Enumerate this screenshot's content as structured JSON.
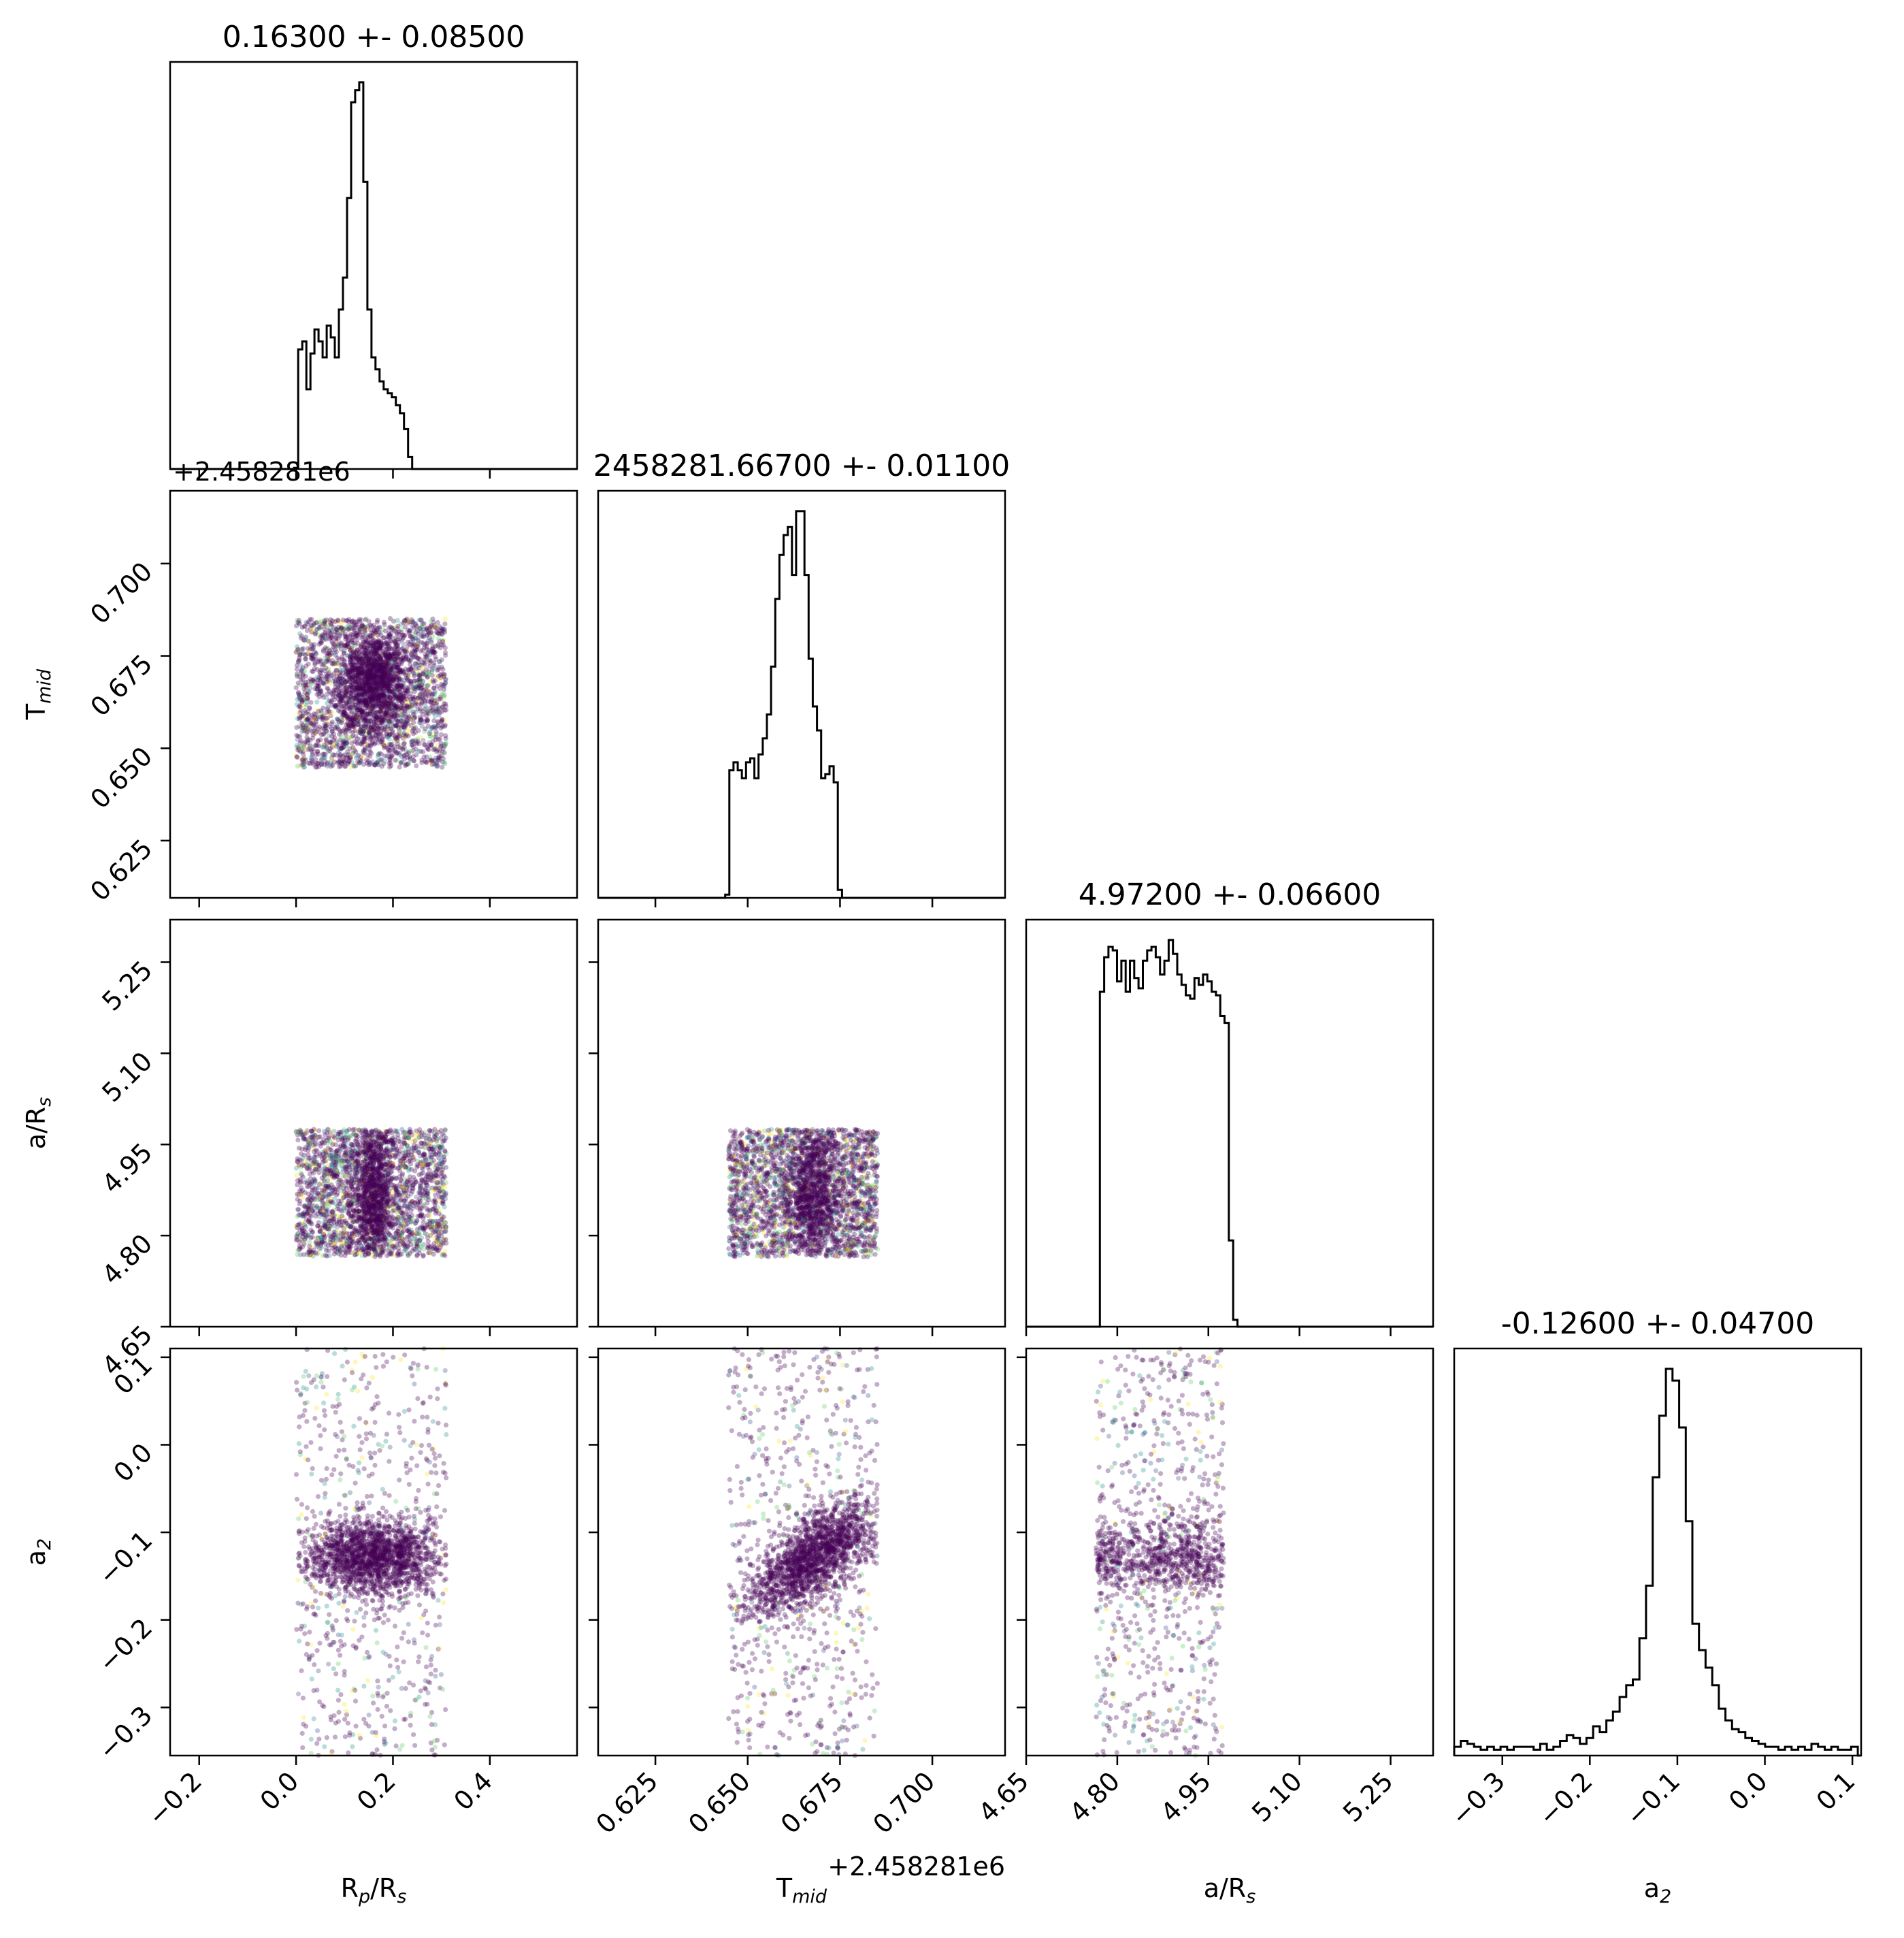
{
  "chart_data": {
    "type": "corner",
    "parameters": [
      {
        "key": "rp",
        "label_main": "R",
        "label_sub": "p",
        "label_tail": "/R",
        "label_tail_sub": "s",
        "range": [
          -0.26,
          0.58
        ],
        "ticks": [
          -0.2,
          0.0,
          0.2,
          0.4
        ],
        "tick_labels": [
          "−0.2",
          "0.0",
          "0.2",
          "0.4"
        ],
        "title": "0.16300 +- 0.08500",
        "offset": ""
      },
      {
        "key": "tmid",
        "label_main": "T",
        "label_sub": "mid",
        "label_tail": "",
        "label_tail_sub": "",
        "range": [
          0.6095,
          0.7197
        ],
        "ticks": [
          0.625,
          0.65,
          0.675,
          0.7
        ],
        "tick_labels": [
          "0.625",
          "0.650",
          "0.675",
          "0.700"
        ],
        "title": "2458281.66700 +- 0.01100",
        "offset": "+2.458281e6"
      },
      {
        "key": "ars",
        "label_main": "a/R",
        "label_sub": "s",
        "label_tail": "",
        "label_tail_sub": "",
        "range": [
          4.65,
          5.32
        ],
        "ticks": [
          4.65,
          4.8,
          4.95,
          5.1,
          5.25
        ],
        "tick_labels": [
          "4.65",
          "4.80",
          "4.95",
          "5.10",
          "5.25"
        ],
        "title": "4.97200 +- 0.06600",
        "offset": ""
      },
      {
        "key": "a2",
        "label_main": "a",
        "label_sub": "2",
        "label_tail": "",
        "label_tail_sub": "",
        "range": [
          -0.355,
          0.11
        ],
        "ticks": [
          -0.3,
          -0.2,
          -0.1,
          0.0,
          0.1
        ],
        "tick_labels": [
          "−0.3",
          "−0.2",
          "−0.1",
          "0.0",
          "0.1"
        ],
        "title": "-0.12600 +- 0.04700",
        "offset": ""
      }
    ],
    "histograms": [
      {
        "param": "rp",
        "edges_start": -0.004,
        "bin_width": 0.0084,
        "counts": [
          0.3,
          30,
          32,
          20,
          29,
          35,
          32,
          28,
          36,
          33,
          28,
          40,
          48,
          68,
          92,
          95,
          97,
          72,
          40,
          28,
          25,
          22,
          20,
          19,
          18,
          16,
          14,
          10,
          3,
          0
        ]
      },
      {
        "param": "tmid",
        "edges_start": 0.6439,
        "bin_width": 0.00113,
        "counts": [
          0.8,
          32,
          34,
          32,
          30,
          34,
          35,
          30,
          36,
          40,
          46,
          58,
          75,
          86,
          91,
          93,
          81,
          97,
          97,
          81,
          60,
          48,
          42,
          30,
          31,
          33,
          29,
          2
        ]
      },
      {
        "param": "ars",
        "edges_start": 4.7713,
        "bin_width": 0.00708,
        "counts": [
          97,
          107,
          110,
          109,
          100,
          106,
          97,
          106,
          101,
          98,
          106,
          109,
          110,
          107,
          102,
          106,
          112,
          108,
          102,
          99,
          96,
          95,
          101,
          99,
          102,
          100,
          97,
          96,
          90,
          88,
          25,
          2
        ]
      },
      {
        "param": "a2",
        "edges_start": -0.355,
        "bin_width": 0.00756,
        "counts": [
          3,
          5,
          4,
          3,
          2,
          3,
          2,
          3,
          2,
          3,
          3,
          3,
          2,
          4,
          2,
          3,
          5,
          7,
          6,
          4,
          6,
          10,
          8,
          12,
          15,
          20,
          24,
          26,
          40,
          58,
          95,
          116,
          132,
          128,
          112,
          80,
          45,
          36,
          30,
          24,
          16,
          12,
          9,
          8,
          6,
          5,
          4,
          3,
          3,
          2,
          3,
          2,
          3,
          2,
          4,
          3,
          2,
          3,
          2,
          2,
          3
        ]
      }
    ],
    "scatter_panels": [
      {
        "x": "rp",
        "y": "tmid",
        "x_range": [
          0.0,
          0.31
        ],
        "y_range": [
          0.6448,
          0.6852
        ],
        "core": {
          "x": 0.16,
          "y": 0.668,
          "sx": 0.038,
          "sy": 0.007
        },
        "n_uniform": 2200,
        "n_core": 1300
      },
      {
        "x": "rp",
        "y": "ars",
        "x_range": [
          0.0,
          0.31
        ],
        "y_range": [
          4.765,
          4.975
        ],
        "core": {
          "x": 0.16,
          "y": 4.87,
          "sx": 0.02,
          "sy": 0.06
        },
        "n_uniform": 2200,
        "n_core": 900
      },
      {
        "x": "tmid",
        "y": "ars",
        "x_range": [
          0.6448,
          0.6852
        ],
        "y_range": [
          4.765,
          4.975
        ],
        "core": {
          "x": 0.668,
          "y": 4.87,
          "sx": 0.004,
          "sy": 0.06
        },
        "n_uniform": 2200,
        "n_core": 900
      },
      {
        "x": "rp",
        "y": "a2",
        "x_range": [
          0.0,
          0.31
        ],
        "y_range": [
          -0.355,
          0.11
        ],
        "core": {
          "x": 0.16,
          "y": -0.128,
          "sx": 0.07,
          "sy": 0.022
        },
        "n_uniform": 650,
        "n_core": 1700
      },
      {
        "x": "tmid",
        "y": "a2",
        "x_range": [
          0.6448,
          0.6852
        ],
        "y_range": [
          -0.355,
          0.11
        ],
        "core": {
          "x": 0.668,
          "y": -0.128,
          "sx": 0.009,
          "sy": 0.024,
          "slope": 2.6
        },
        "n_uniform": 650,
        "n_core": 1700
      },
      {
        "x": "ars",
        "y": "a2",
        "x_range": [
          4.765,
          4.975
        ],
        "y_range": [
          -0.355,
          0.11
        ],
        "core": {
          "x": 4.87,
          "y": -0.128,
          "sx": 0.2,
          "sy": 0.022
        },
        "n_uniform": 650,
        "n_core": 1800
      }
    ],
    "colors": {
      "hist": "#000000",
      "points": [
        "#440154",
        "#3b528b",
        "#21918c",
        "#5ec962",
        "#fde725"
      ],
      "main_point": "#440154"
    },
    "grid": false,
    "legend": "none"
  }
}
